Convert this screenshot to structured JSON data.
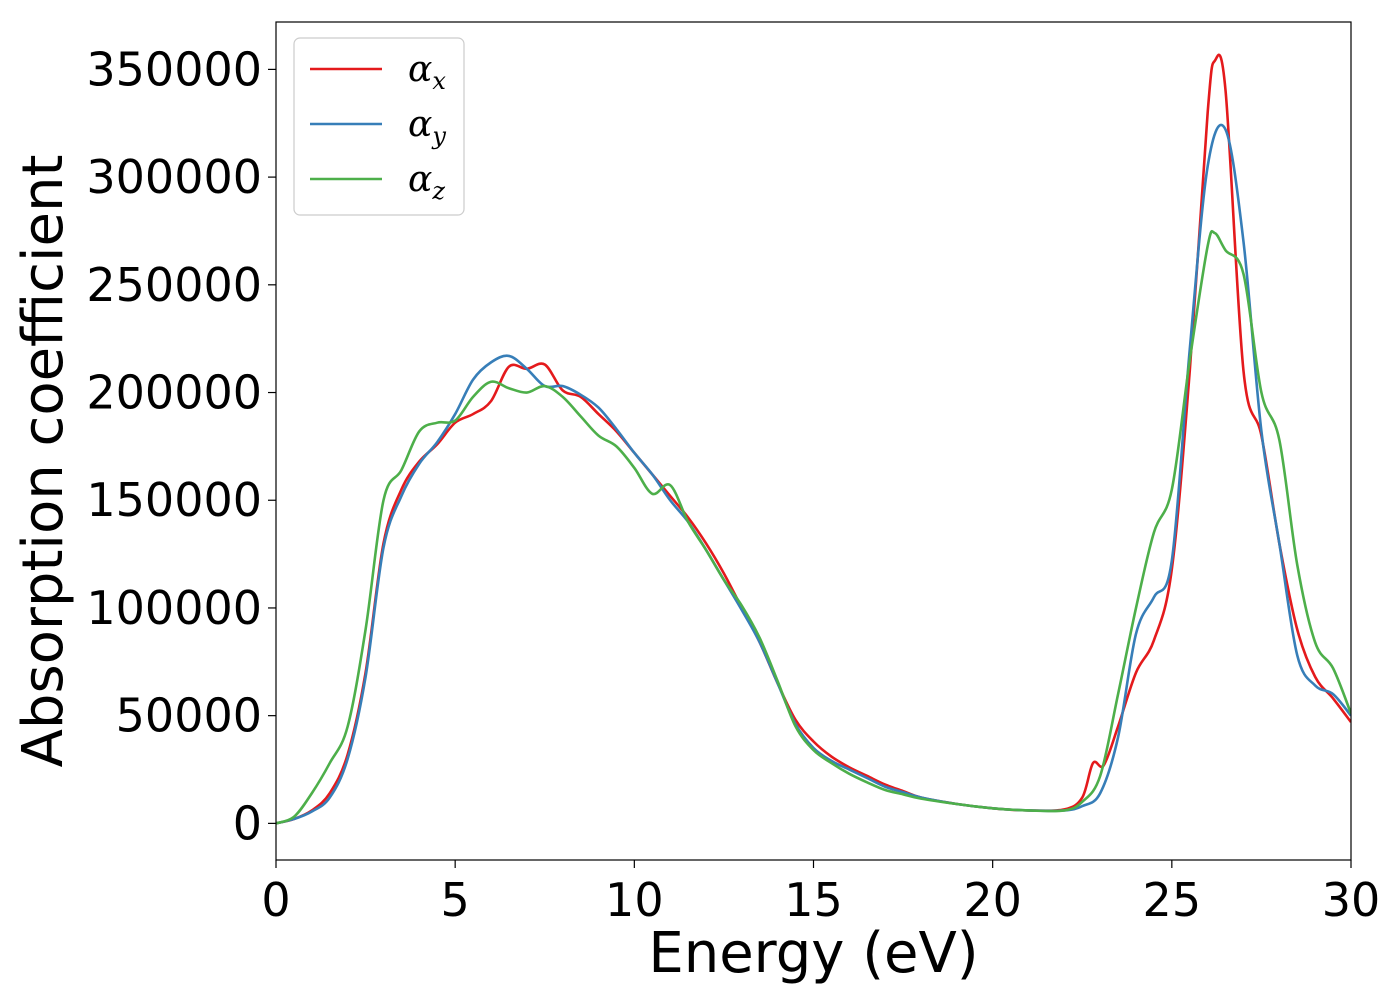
{
  "chart_data": {
    "type": "line",
    "title": "",
    "xlabel": "Energy (eV)",
    "ylabel": "Absorption coefficient",
    "xlim": [
      0,
      30
    ],
    "ylim": [
      -17000,
      372000
    ],
    "xticks": [
      0,
      5,
      10,
      15,
      20,
      25,
      30
    ],
    "xtick_labels": [
      "0",
      "5",
      "10",
      "15",
      "20",
      "25",
      "30"
    ],
    "yticks": [
      0,
      50000,
      100000,
      150000,
      200000,
      250000,
      300000,
      350000
    ],
    "ytick_labels": [
      "0",
      "50000",
      "100000",
      "150000",
      "200000",
      "250000",
      "300000",
      "350000"
    ],
    "grid": false,
    "legend_position": "top-left",
    "series": [
      {
        "name": "α_x",
        "legend_main": "α",
        "legend_sub": "x",
        "color": "#e41a1c",
        "points": [
          [
            0,
            0
          ],
          [
            0.5,
            2000
          ],
          [
            1,
            6000
          ],
          [
            1.5,
            14000
          ],
          [
            2,
            32000
          ],
          [
            2.5,
            70000
          ],
          [
            3,
            130000
          ],
          [
            3.5,
            155000
          ],
          [
            4,
            168000
          ],
          [
            4.5,
            176000
          ],
          [
            5,
            186000
          ],
          [
            5.5,
            190000
          ],
          [
            6,
            196000
          ],
          [
            6.5,
            212000
          ],
          [
            7,
            211000
          ],
          [
            7.5,
            213000
          ],
          [
            8,
            201000
          ],
          [
            8.5,
            198000
          ],
          [
            9,
            190000
          ],
          [
            9.5,
            182000
          ],
          [
            10,
            172000
          ],
          [
            10.5,
            162000
          ],
          [
            11,
            152000
          ],
          [
            11.5,
            142000
          ],
          [
            12,
            130000
          ],
          [
            12.5,
            116000
          ],
          [
            13,
            100000
          ],
          [
            13.5,
            84000
          ],
          [
            14,
            65000
          ],
          [
            14.5,
            48000
          ],
          [
            15,
            38000
          ],
          [
            15.5,
            31000
          ],
          [
            16,
            26000
          ],
          [
            16.5,
            22000
          ],
          [
            17,
            18000
          ],
          [
            17.5,
            15000
          ],
          [
            18,
            12000
          ],
          [
            19,
            9000
          ],
          [
            20,
            7000
          ],
          [
            21,
            6000
          ],
          [
            22,
            6500
          ],
          [
            22.5,
            12000
          ],
          [
            22.8,
            28000
          ],
          [
            23.1,
            27000
          ],
          [
            23.5,
            45000
          ],
          [
            24,
            70000
          ],
          [
            24.5,
            85000
          ],
          [
            25,
            118000
          ],
          [
            25.5,
            210000
          ],
          [
            26,
            330000
          ],
          [
            26.2,
            354000
          ],
          [
            26.5,
            340000
          ],
          [
            27,
            210000
          ],
          [
            27.5,
            180000
          ],
          [
            28,
            130000
          ],
          [
            28.5,
            90000
          ],
          [
            29,
            68000
          ],
          [
            29.5,
            58000
          ],
          [
            30,
            47000
          ]
        ]
      },
      {
        "name": "α_y",
        "legend_main": "α",
        "legend_sub": "y",
        "color": "#377eb8",
        "points": [
          [
            0,
            0
          ],
          [
            0.5,
            2000
          ],
          [
            1,
            5500
          ],
          [
            1.5,
            12000
          ],
          [
            2,
            30000
          ],
          [
            2.5,
            68000
          ],
          [
            3,
            128000
          ],
          [
            3.5,
            152000
          ],
          [
            4,
            167000
          ],
          [
            4.5,
            177000
          ],
          [
            5,
            190000
          ],
          [
            5.5,
            206000
          ],
          [
            6,
            214000
          ],
          [
            6.5,
            217000
          ],
          [
            7,
            211000
          ],
          [
            7.5,
            203000
          ],
          [
            8,
            203000
          ],
          [
            8.5,
            199000
          ],
          [
            9,
            193000
          ],
          [
            9.5,
            183000
          ],
          [
            10,
            172000
          ],
          [
            10.5,
            162000
          ],
          [
            11,
            150000
          ],
          [
            11.5,
            140000
          ],
          [
            12,
            127000
          ],
          [
            12.5,
            113000
          ],
          [
            13,
            99000
          ],
          [
            13.5,
            84000
          ],
          [
            14,
            65000
          ],
          [
            14.5,
            46000
          ],
          [
            15,
            35000
          ],
          [
            15.5,
            29000
          ],
          [
            16,
            25000
          ],
          [
            16.5,
            21000
          ],
          [
            17,
            17000
          ],
          [
            17.5,
            14500
          ],
          [
            18,
            12000
          ],
          [
            19,
            9000
          ],
          [
            20,
            7000
          ],
          [
            21,
            6000
          ],
          [
            22,
            6000
          ],
          [
            22.5,
            8000
          ],
          [
            23,
            14000
          ],
          [
            23.5,
            40000
          ],
          [
            24,
            88000
          ],
          [
            24.5,
            105000
          ],
          [
            25,
            122000
          ],
          [
            25.5,
            220000
          ],
          [
            26,
            305000
          ],
          [
            26.5,
            322000
          ],
          [
            27,
            270000
          ],
          [
            27.5,
            182000
          ],
          [
            28,
            130000
          ],
          [
            28.5,
            78000
          ],
          [
            29,
            64000
          ],
          [
            29.5,
            60000
          ],
          [
            30,
            50000
          ]
        ]
      },
      {
        "name": "α_z",
        "legend_main": "α",
        "legend_sub": "z",
        "color": "#4daf4a",
        "points": [
          [
            0,
            0
          ],
          [
            0.5,
            3000
          ],
          [
            1,
            14000
          ],
          [
            1.5,
            28000
          ],
          [
            2,
            45000
          ],
          [
            2.5,
            90000
          ],
          [
            3,
            150000
          ],
          [
            3.5,
            164000
          ],
          [
            4,
            182000
          ],
          [
            4.5,
            186000
          ],
          [
            5,
            187000
          ],
          [
            5.5,
            198000
          ],
          [
            6,
            205000
          ],
          [
            6.5,
            202000
          ],
          [
            7,
            200000
          ],
          [
            7.5,
            203000
          ],
          [
            8,
            198000
          ],
          [
            8.5,
            189000
          ],
          [
            9,
            180000
          ],
          [
            9.5,
            175000
          ],
          [
            10,
            165000
          ],
          [
            10.5,
            153000
          ],
          [
            11,
            157000
          ],
          [
            11.5,
            140000
          ],
          [
            12,
            127000
          ],
          [
            12.5,
            113000
          ],
          [
            13,
            101000
          ],
          [
            13.5,
            86000
          ],
          [
            14,
            66000
          ],
          [
            14.5,
            45000
          ],
          [
            15,
            34000
          ],
          [
            15.5,
            28000
          ],
          [
            16,
            23000
          ],
          [
            16.5,
            19000
          ],
          [
            17,
            15500
          ],
          [
            17.5,
            13500
          ],
          [
            18,
            11500
          ],
          [
            19,
            9000
          ],
          [
            20,
            7000
          ],
          [
            21,
            6000
          ],
          [
            22,
            6000
          ],
          [
            22.5,
            10000
          ],
          [
            23,
            22000
          ],
          [
            23.5,
            60000
          ],
          [
            24,
            100000
          ],
          [
            24.5,
            135000
          ],
          [
            25,
            155000
          ],
          [
            25.5,
            215000
          ],
          [
            26,
            268000
          ],
          [
            26.2,
            274000
          ],
          [
            26.5,
            266000
          ],
          [
            27,
            255000
          ],
          [
            27.5,
            200000
          ],
          [
            28,
            178000
          ],
          [
            28.5,
            120000
          ],
          [
            29,
            84000
          ],
          [
            29.5,
            72000
          ],
          [
            30,
            51000
          ]
        ]
      }
    ]
  }
}
